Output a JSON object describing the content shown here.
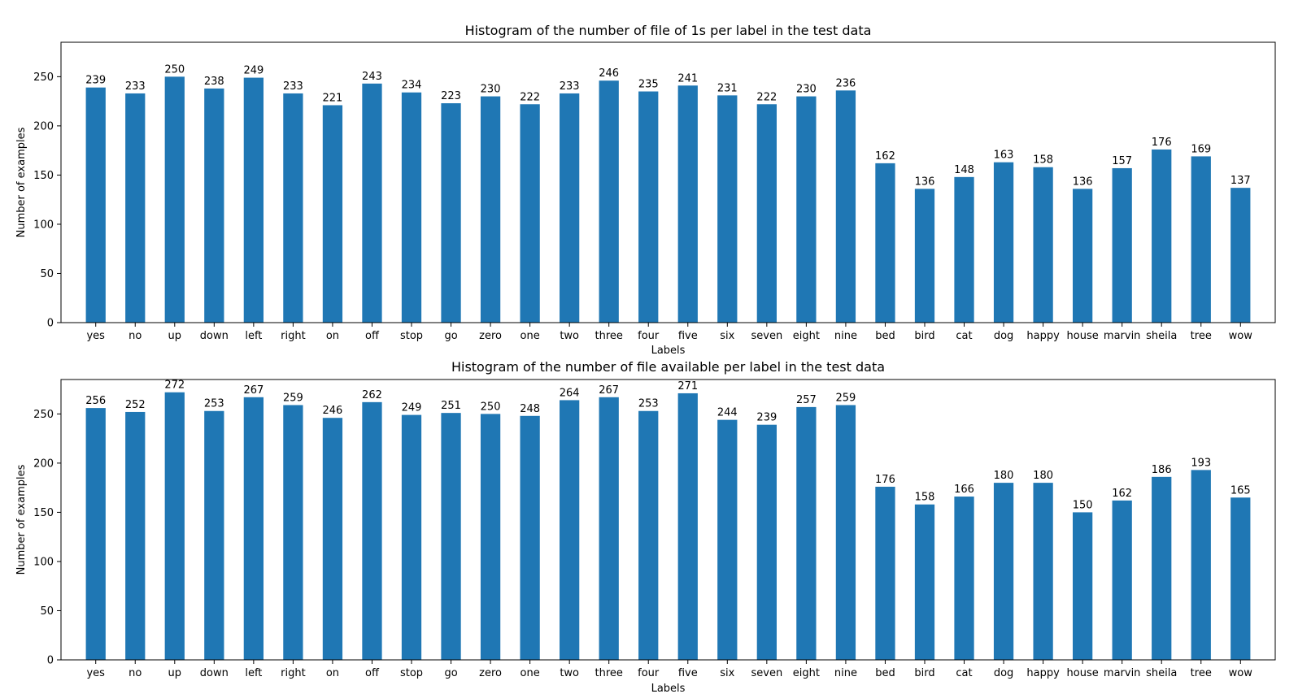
{
  "chart_data": [
    {
      "type": "bar",
      "title": "Histogram of the number of file of 1s per label in the test data",
      "xlabel": "Labels",
      "ylabel": "Number of examples",
      "ylim": [
        0,
        285
      ],
      "yticks": [
        "0",
        "50",
        "100",
        "150",
        "200",
        "250"
      ],
      "grid": false,
      "bar_color": "#1f77b4",
      "categories": [
        "yes",
        "no",
        "up",
        "down",
        "left",
        "right",
        "on",
        "off",
        "stop",
        "go",
        "zero",
        "one",
        "two",
        "three",
        "four",
        "five",
        "six",
        "seven",
        "eight",
        "nine",
        "bed",
        "bird",
        "cat",
        "dog",
        "happy",
        "house",
        "marvin",
        "sheila",
        "tree",
        "wow"
      ],
      "values": [
        239,
        233,
        250,
        238,
        249,
        233,
        221,
        243,
        234,
        223,
        230,
        222,
        233,
        246,
        235,
        241,
        231,
        222,
        230,
        236,
        162,
        136,
        148,
        163,
        158,
        136,
        157,
        176,
        169,
        137
      ]
    },
    {
      "type": "bar",
      "title": "Histogram of the number of file available per label in the test data",
      "xlabel": "Labels",
      "ylabel": "Number of examples",
      "ylim": [
        0,
        285
      ],
      "yticks": [
        "0",
        "50",
        "100",
        "150",
        "200",
        "250"
      ],
      "grid": false,
      "bar_color": "#1f77b4",
      "categories": [
        "yes",
        "no",
        "up",
        "down",
        "left",
        "right",
        "on",
        "off",
        "stop",
        "go",
        "zero",
        "one",
        "two",
        "three",
        "four",
        "five",
        "six",
        "seven",
        "eight",
        "nine",
        "bed",
        "bird",
        "cat",
        "dog",
        "happy",
        "house",
        "marvin",
        "sheila",
        "tree",
        "wow"
      ],
      "values": [
        256,
        252,
        272,
        253,
        267,
        259,
        246,
        262,
        249,
        251,
        250,
        248,
        264,
        267,
        253,
        271,
        244,
        239,
        257,
        259,
        176,
        158,
        166,
        180,
        180,
        150,
        162,
        186,
        193,
        165
      ]
    }
  ]
}
